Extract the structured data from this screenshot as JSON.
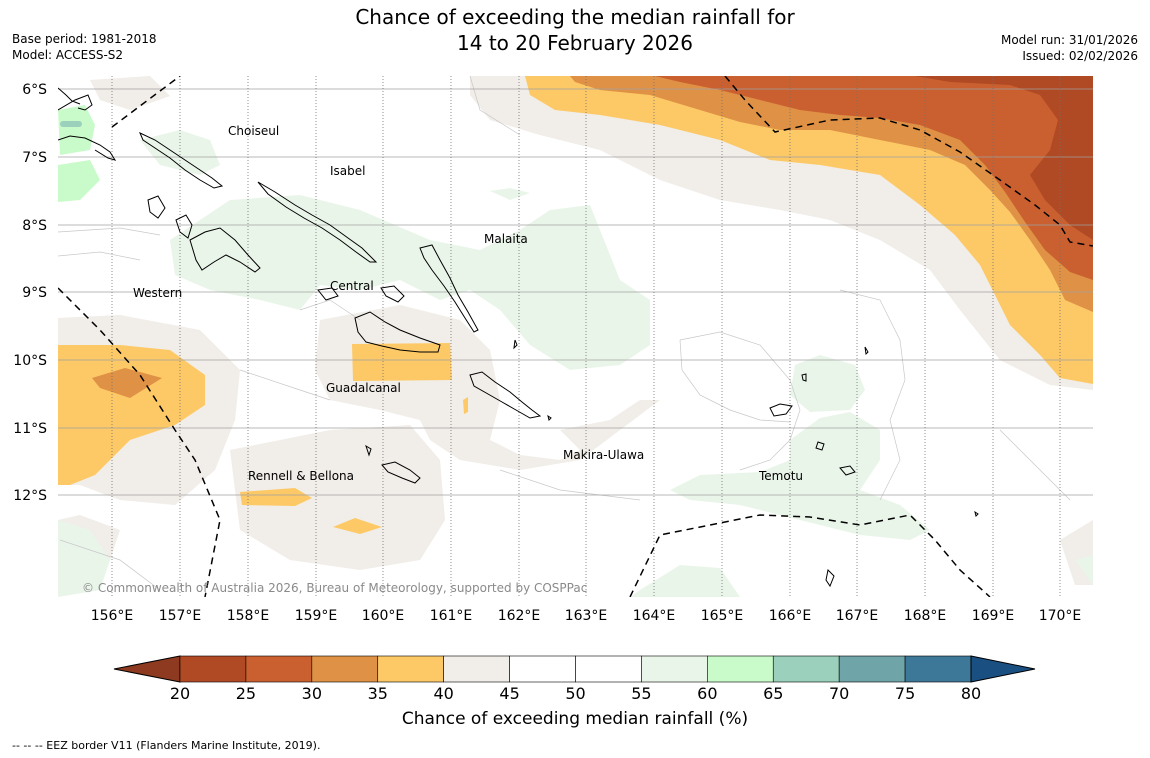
{
  "title": {
    "line1": "Chance of exceeding the median rainfall for",
    "line2": "14 to 20 February 2026"
  },
  "meta_left": {
    "base_period": "Base period: 1981-2018",
    "model": "Model: ACCESS-S2"
  },
  "meta_right": {
    "model_run": "Model run: 31/01/2026",
    "issued": "Issued: 02/02/2026"
  },
  "map": {
    "lat_labels": [
      "6°S",
      "7°S",
      "8°S",
      "9°S",
      "10°S",
      "11°S",
      "12°S"
    ],
    "lon_labels": [
      "156°E",
      "157°E",
      "158°E",
      "159°E",
      "160°E",
      "161°E",
      "162°E",
      "163°E",
      "164°E",
      "165°E",
      "166°E",
      "167°E",
      "168°E",
      "169°E",
      "170°E"
    ],
    "provinces": [
      "Choiseul",
      "Isabel",
      "Malaita",
      "Western",
      "Central",
      "Guadalcanal",
      "Makira-Ulawa",
      "Temotu",
      "Rennell & Bellona"
    ],
    "copyright": "© Commonwealth of Australia 2026, Bureau of Meteorology, supported by COSPPac"
  },
  "colorbar": {
    "ticks": [
      "20",
      "25",
      "30",
      "35",
      "40",
      "45",
      "50",
      "55",
      "60",
      "65",
      "70",
      "75",
      "80"
    ],
    "colors": [
      "#b04a24",
      "#ca6030",
      "#df9145",
      "#fdc966",
      "#f1ede8",
      "#ffffff",
      "#ffffff",
      "#eaf5ea",
      "#c8fbc9",
      "#9bd1bc",
      "#6fa4a9",
      "#3e7899"
    ],
    "extend_low_color": "#8e3a20",
    "extend_high_color": "#1a4f82",
    "title": "Chance of exceeding median rainfall (%)"
  },
  "legend": {
    "eez": "--  --  -- EEZ border V11 (Flanders Marine Institute, 2019)."
  }
}
